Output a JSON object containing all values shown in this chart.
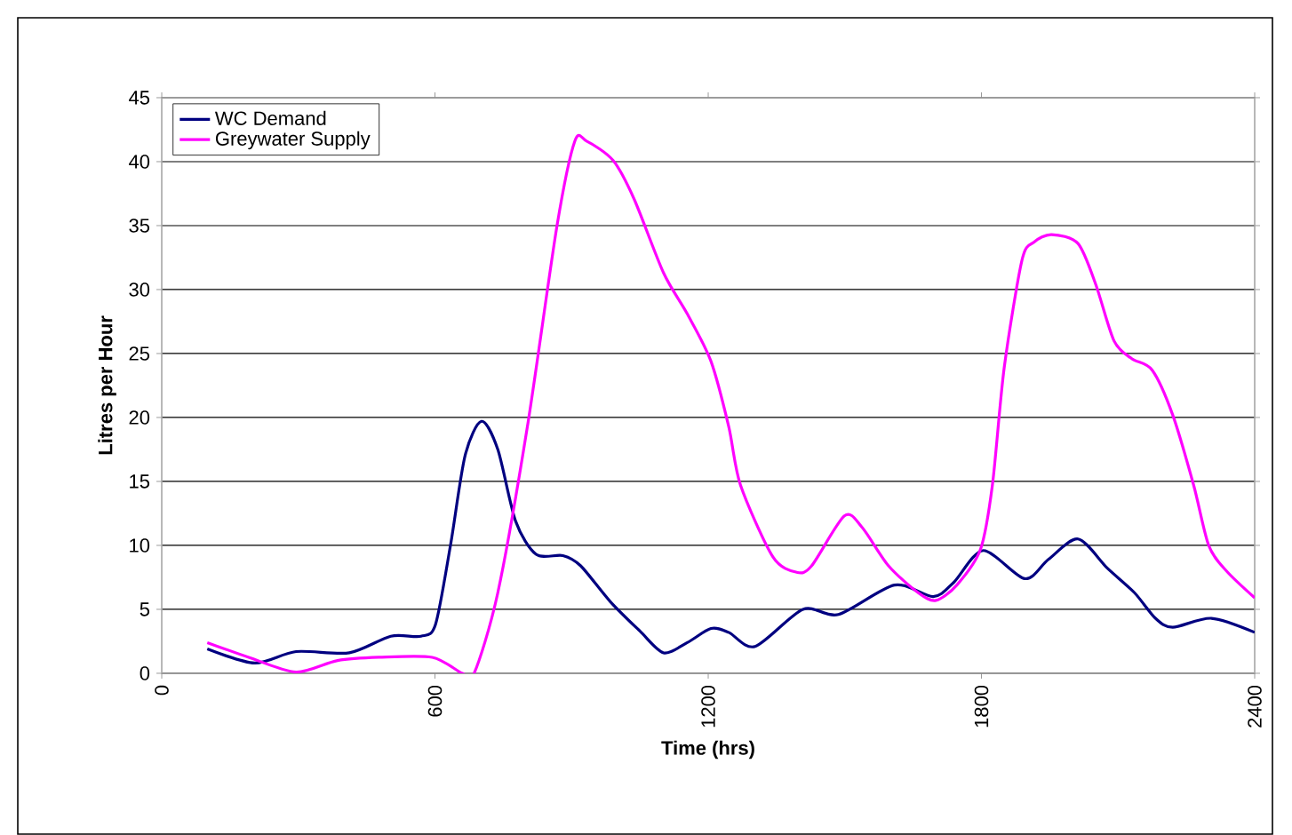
{
  "chart_data": {
    "type": "line",
    "xlabel": "Time (hrs)",
    "ylabel": "Litres per Hour",
    "xlim": [
      0,
      2400
    ],
    "xticks": [
      0,
      600,
      1200,
      1800,
      2400
    ],
    "ylim": [
      0,
      45
    ],
    "yticks": [
      0,
      5,
      10,
      15,
      20,
      25,
      30,
      35,
      40,
      45
    ],
    "grid": "y",
    "legend": "top left",
    "series": [
      {
        "name": "WC Demand",
        "color": "#000080",
        "x": [
          100,
          204,
          295,
          412,
          503,
          569,
          601,
          634,
          666,
          702,
          738,
          777,
          822,
          881,
          920,
          985,
          1050,
          1102,
          1154,
          1206,
          1245,
          1303,
          1408,
          1486,
          1609,
          1694,
          1739,
          1804,
          1895,
          1947,
          2012,
          2077,
          2136,
          2182,
          2220,
          2305,
          2400
        ],
        "values": [
          1.9,
          0.8,
          1.7,
          1.6,
          2.9,
          2.9,
          3.8,
          10,
          17,
          19.7,
          17.5,
          11.9,
          9.3,
          9.2,
          8.4,
          5.6,
          3.3,
          1.6,
          2.4,
          3.5,
          3.2,
          2.1,
          5.0,
          4.6,
          6.9,
          6.0,
          7.1,
          9.6,
          7.4,
          8.9,
          10.5,
          8.2,
          6.3,
          4.3,
          3.6,
          4.3,
          3.2
        ]
      },
      {
        "name": "Greywater Supply",
        "color": "#ff00ff",
        "x": [
          100,
          191,
          295,
          386,
          477,
          594,
          660,
          686,
          738,
          803,
          868,
          907,
          933,
          991,
          1037,
          1102,
          1154,
          1206,
          1245,
          1271,
          1342,
          1394,
          1427,
          1499,
          1538,
          1596,
          1661,
          1700,
          1746,
          1798,
          1824,
          1850,
          1889,
          1915,
          1954,
          2012,
          2051,
          2091,
          2130,
          2175,
          2220,
          2266,
          2299,
          2338,
          2400
        ],
        "values": [
          2.4,
          1.25,
          0.1,
          1.0,
          1.25,
          1.25,
          0,
          0,
          6.3,
          19.3,
          35,
          41.6,
          41.6,
          40.1,
          37.1,
          31.3,
          28.1,
          24.4,
          19.3,
          14.7,
          9.1,
          7.9,
          8.4,
          12.3,
          11.4,
          8.4,
          6.3,
          5.7,
          6.9,
          9.7,
          14.7,
          23.9,
          32.3,
          33.7,
          34.3,
          33.6,
          30.4,
          26,
          24.6,
          23.7,
          20.2,
          14.7,
          10,
          8,
          5.9
        ]
      }
    ]
  }
}
